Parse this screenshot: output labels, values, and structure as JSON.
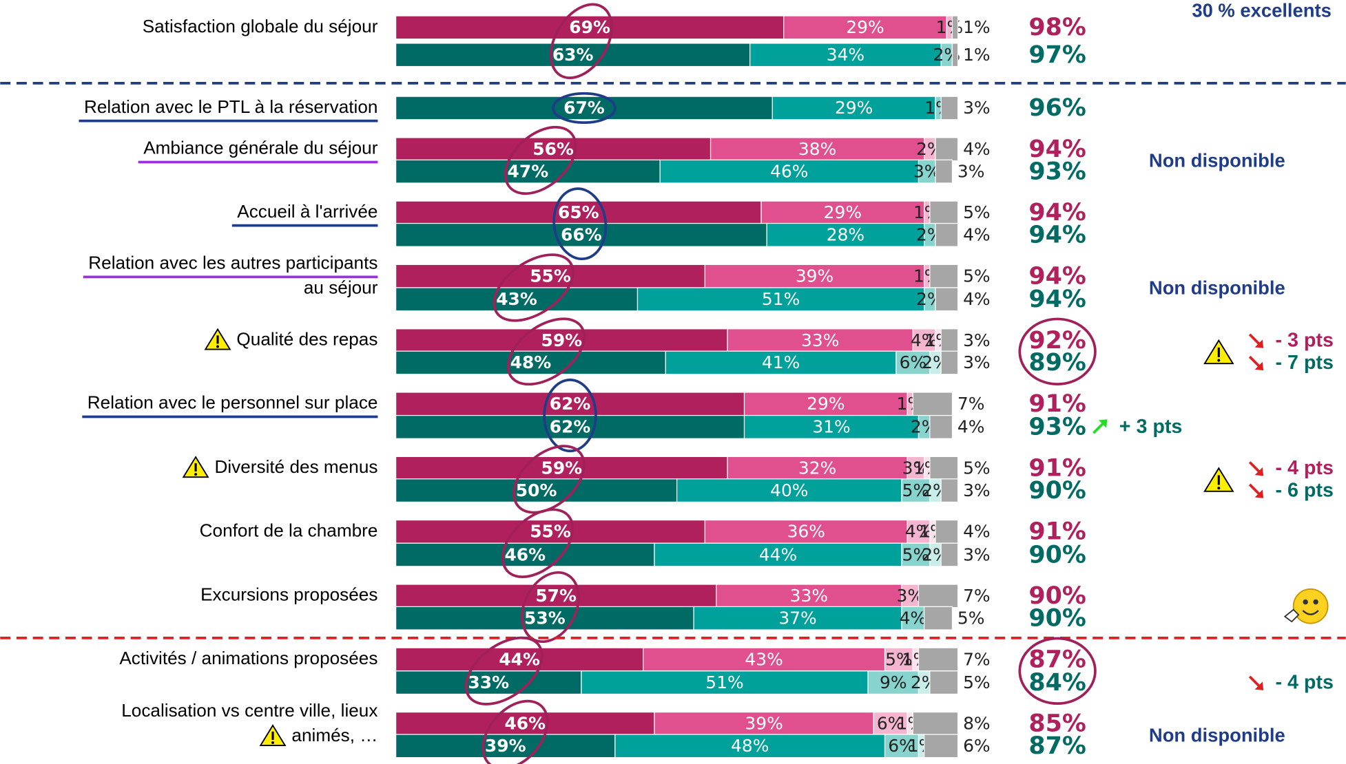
{
  "chart_data": {
    "type": "bar",
    "header_note": "30 % excellents",
    "series": [
      {
        "colors": [
          "#b0205c",
          "#e0508e",
          "#f5b4cf",
          "#fbe3ee",
          "#a6a6a6"
        ]
      },
      {
        "colors": [
          "#006b65",
          "#00a19a",
          "#86d4cd",
          "#c9ede9",
          "#a6a6a6"
        ]
      }
    ],
    "rows": [
      {
        "label": [
          "Satisfaction globale du séjour"
        ],
        "circle_color": "#a0205a",
        "bars": [
          {
            "series": 0,
            "values": [
              69,
              29,
              1,
              null,
              1
            ],
            "value_labels": [
              "69%",
              "29%",
              "1%",
              null,
              "1%"
            ],
            "total": 98,
            "total_label": "98%"
          },
          {
            "series": 1,
            "values": [
              63,
              34,
              2,
              null,
              1
            ],
            "value_labels": [
              "63%",
              "34%",
              "2%",
              null,
              "1%"
            ],
            "total": 97,
            "total_label": "97%"
          }
        ]
      },
      {
        "label": [
          "Relation avec le PTL à la réservation"
        ],
        "underline": "#1f3c88",
        "circle_color": "#1f3c88",
        "divider_before": "#1f3c88",
        "bars": [
          {
            "series": 1,
            "values": [
              67,
              29,
              1,
              null,
              3
            ],
            "value_labels": [
              "67%",
              "29%",
              "1%",
              null,
              "3%"
            ],
            "total": 96,
            "total_label": "96%"
          }
        ]
      },
      {
        "label": [
          "Ambiance générale du séjour"
        ],
        "underline": "#9b30e0",
        "circle_color": "#a0205a",
        "note": "Non disponible",
        "bars": [
          {
            "series": 0,
            "values": [
              56,
              38,
              2,
              null,
              4
            ],
            "value_labels": [
              "56%",
              "38%",
              "2%",
              null,
              "4%"
            ],
            "total": 94,
            "total_label": "94%"
          },
          {
            "series": 1,
            "values": [
              47,
              46,
              3,
              null,
              3
            ],
            "value_labels": [
              "47%",
              "46%",
              "3%",
              null,
              "3%"
            ],
            "total": 93,
            "total_label": "93%"
          }
        ]
      },
      {
        "label": [
          "Accueil à l'arrivée"
        ],
        "underline": "#1f3c88",
        "circle_color": "#1f3c88",
        "bars": [
          {
            "series": 0,
            "values": [
              65,
              29,
              1,
              null,
              5
            ],
            "value_labels": [
              "65%",
              "29%",
              "1%",
              null,
              "5%"
            ],
            "total": 94,
            "total_label": "94%"
          },
          {
            "series": 1,
            "values": [
              66,
              28,
              2,
              null,
              4
            ],
            "value_labels": [
              "66%",
              "28%",
              "2%",
              null,
              "4%"
            ],
            "total": 94,
            "total_label": "94%"
          }
        ]
      },
      {
        "label": [
          "Relation avec les autres participants",
          "au séjour"
        ],
        "underline": "#9b30e0",
        "circle_color": "#a0205a",
        "note": "Non disponible",
        "bars": [
          {
            "series": 0,
            "values": [
              55,
              39,
              1,
              null,
              5
            ],
            "value_labels": [
              "55%",
              "39%",
              "1%",
              null,
              "5%"
            ],
            "total": 94,
            "total_label": "94%"
          },
          {
            "series": 1,
            "values": [
              43,
              51,
              2,
              null,
              4
            ],
            "value_labels": [
              "43%",
              "51%",
              "2%",
              null,
              "4%"
            ],
            "total": 94,
            "total_label": "94%"
          }
        ]
      },
      {
        "label": [
          "Qualité des repas"
        ],
        "warning": true,
        "circle_color": "#a0205a",
        "total_circle": true,
        "trend_warning": true,
        "bars": [
          {
            "series": 0,
            "values": [
              59,
              33,
              4,
              1,
              3
            ],
            "value_labels": [
              "59%",
              "33%",
              "4%",
              "1%",
              "3%"
            ],
            "total": 92,
            "total_label": "92%",
            "trend": {
              "text": "- 3 pts",
              "direction": "down"
            }
          },
          {
            "series": 1,
            "values": [
              48,
              41,
              6,
              2,
              3
            ],
            "value_labels": [
              "48%",
              "41%",
              "6%",
              "2%",
              "3%"
            ],
            "total": 89,
            "total_label": "89%",
            "trend": {
              "text": "- 7 pts",
              "direction": "down"
            }
          }
        ]
      },
      {
        "label": [
          "Relation avec le personnel sur place"
        ],
        "underline": "#1f3c88",
        "circle_color": "#1f3c88",
        "bars": [
          {
            "series": 0,
            "values": [
              62,
              29,
              1,
              null,
              7
            ],
            "value_labels": [
              "62%",
              "29%",
              "1%",
              null,
              "7%"
            ],
            "total": 91,
            "total_label": "91%"
          },
          {
            "series": 1,
            "values": [
              62,
              31,
              2,
              null,
              4
            ],
            "value_labels": [
              "62%",
              "31%",
              "2%",
              null,
              "4%"
            ],
            "total": 93,
            "total_label": "93%",
            "trend": {
              "text": "+ 3 pts",
              "direction": "up"
            }
          }
        ]
      },
      {
        "label": [
          "Diversité des menus"
        ],
        "warning": true,
        "circle_color": "#a0205a",
        "trend_warning": true,
        "bars": [
          {
            "series": 0,
            "values": [
              59,
              32,
              3,
              1,
              5
            ],
            "value_labels": [
              "59%",
              "32%",
              "3%",
              "1%",
              "5%"
            ],
            "total": 91,
            "total_label": "91%",
            "trend": {
              "text": "- 4 pts",
              "direction": "down"
            }
          },
          {
            "series": 1,
            "values": [
              50,
              40,
              5,
              2,
              3
            ],
            "value_labels": [
              "50%",
              "40%",
              "5%",
              "2%",
              "3%"
            ],
            "total": 90,
            "total_label": "90%",
            "trend": {
              "text": "- 6 pts",
              "direction": "down"
            }
          }
        ]
      },
      {
        "label": [
          "Confort de la chambre"
        ],
        "circle_color": "#a0205a",
        "bars": [
          {
            "series": 0,
            "values": [
              55,
              36,
              4,
              1,
              4
            ],
            "value_labels": [
              "55%",
              "36%",
              "4%",
              "1%",
              "4%"
            ],
            "total": 91,
            "total_label": "91%"
          },
          {
            "series": 1,
            "values": [
              46,
              44,
              5,
              2,
              3
            ],
            "value_labels": [
              "46%",
              "44%",
              "5%",
              "2%",
              "3%"
            ],
            "total": 90,
            "total_label": "90%"
          }
        ]
      },
      {
        "label": [
          "Excursions proposées"
        ],
        "circle_color": "#a0205a",
        "bars": [
          {
            "series": 0,
            "values": [
              57,
              33,
              3,
              null,
              7
            ],
            "value_labels": [
              "57%",
              "33%",
              "3%",
              null,
              "7%"
            ],
            "total": 90,
            "total_label": "90%"
          },
          {
            "series": 1,
            "values": [
              53,
              37,
              4,
              null,
              5
            ],
            "value_labels": [
              "53%",
              "37%",
              "4%",
              null,
              "5%"
            ],
            "total": 90,
            "total_label": "90%"
          }
        ]
      },
      {
        "label": [
          "Activités / animations proposées"
        ],
        "circle_color": "#a0205a",
        "total_circle": true,
        "divider_before": "#e02020",
        "bars": [
          {
            "series": 0,
            "values": [
              44,
              43,
              5,
              1,
              7
            ],
            "value_labels": [
              "44%",
              "43%",
              "5%",
              "1%",
              "7%"
            ],
            "total": 87,
            "total_label": "87%"
          },
          {
            "series": 1,
            "values": [
              33,
              51,
              9,
              2,
              5
            ],
            "value_labels": [
              "33%",
              "51%",
              "9%",
              "2%",
              "5%"
            ],
            "total": 84,
            "total_label": "84%",
            "trend": {
              "text": "- 4 pts",
              "direction": "down"
            }
          }
        ]
      },
      {
        "label": [
          "Localisation vs centre ville, lieux",
          "animés, …"
        ],
        "warning": true,
        "circle_color": "#a0205a",
        "note": "Non disponible",
        "bars": [
          {
            "series": 0,
            "values": [
              46,
              39,
              6,
              1,
              8
            ],
            "value_labels": [
              "46%",
              "39%",
              "6%",
              "1%",
              "8%"
            ],
            "total": 85,
            "total_label": "85%"
          },
          {
            "series": 1,
            "values": [
              39,
              48,
              6,
              1,
              6
            ],
            "value_labels": [
              "39%",
              "48%",
              "6%",
              "1%",
              "6%"
            ],
            "total": 87,
            "total_label": "87%"
          }
        ]
      }
    ]
  }
}
